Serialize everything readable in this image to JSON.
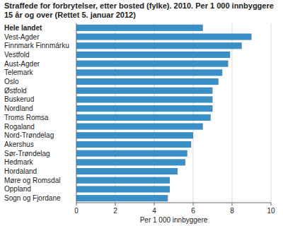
{
  "chart_data": {
    "type": "bar",
    "orientation": "horizontal",
    "title": "Straffede for forbrytelser, etter bosted (fylke). 2010. Per 1 000 innbyggere 15 år og over (Rettet 5. januar 2012)",
    "x_label": "Per 1 000 innbyggere",
    "categories": [
      "Hele landet",
      "Vest-Agder",
      "Finnmark Finnmárku",
      "Vestfold",
      "Aust-Agder",
      "Telemark",
      "Oslo",
      "Østfold",
      "Buskerud",
      "Nordland",
      "Troms Romsa",
      "Rogaland",
      "Nord-Trøndelag",
      "Akershus",
      "Sør-Trøndelag",
      "Hedmark",
      "Hordaland",
      "Møre og Romsdal",
      "Oppland",
      "Sogn og Fjordane"
    ],
    "values": [
      6.5,
      9.0,
      8.5,
      7.9,
      7.8,
      7.5,
      7.3,
      7.0,
      7.0,
      7.0,
      6.9,
      6.5,
      6.0,
      5.9,
      5.7,
      5.6,
      5.2,
      4.8,
      4.8,
      4.7
    ],
    "color": "#3a8fc7",
    "xlim": [
      0,
      10
    ],
    "xticks": [
      0,
      2,
      4,
      6,
      8,
      10
    ],
    "grid": true
  }
}
